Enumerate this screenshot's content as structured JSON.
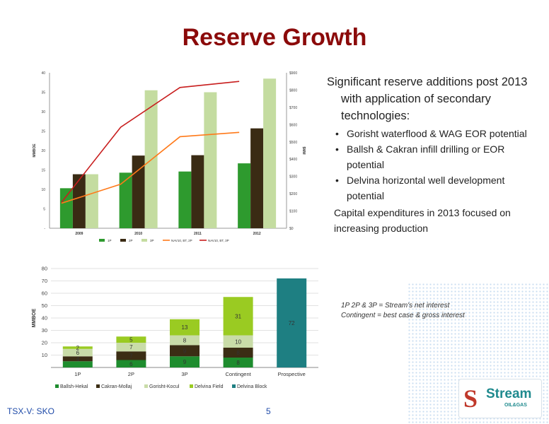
{
  "slide": {
    "title": "Reserve Growth",
    "footer_ticker": "TSX-V:  SKO",
    "page_number": "5",
    "note_line1": "1P 2P & 3P = Stream's net interest",
    "note_line2": "Contingent = best case & gross interest",
    "logo_name": "Stream",
    "logo_sub": "OIL&GAS"
  },
  "bullets": {
    "lead": "Significant reserve additions post 2013 with application of secondary technologies:",
    "items": [
      "Gorisht waterflood & WAG EOR potential",
      "Ballsh & Cakran infill drilling or EOR potential",
      "Delvina horizontal well development potential"
    ],
    "tail": "Capital expenditures in 2013 focused on increasing production"
  },
  "chart_data": [
    {
      "type": "bar",
      "categories": [
        "2009",
        "2010",
        "2011",
        "2012"
      ],
      "series": [
        {
          "name": "1P",
          "values": [
            10.3,
            14.3,
            14.6,
            16.7
          ],
          "color": "#2e9a2e"
        },
        {
          "name": "2P",
          "values": [
            13.9,
            18.7,
            18.8,
            25.7
          ],
          "color": "#3a2b14"
        },
        {
          "name": "3P",
          "values": [
            13.9,
            35.5,
            35.0,
            38.5
          ],
          "color": "#c4dca0"
        }
      ],
      "line_series": [
        {
          "name": "NAV10, BT, 2P",
          "values": [
            145,
            255,
            530,
            555
          ],
          "color": "#ff7a1a"
        },
        {
          "name": "NAV10, BT, 3P",
          "values": [
            150,
            585,
            815,
            850
          ],
          "color": "#c81e1e"
        }
      ],
      "ylabel": "MMBOE",
      "y2label": "$MM",
      "ylim": [
        0,
        40
      ],
      "y2lim": [
        0,
        900
      ],
      "yticks": [
        "-",
        "5",
        "10",
        "15",
        "20",
        "25",
        "30",
        "35",
        "40"
      ],
      "y2ticks": [
        "$0",
        "$100",
        "$200",
        "$300",
        "$400",
        "$500",
        "$600",
        "$700",
        "$800",
        "$900"
      ],
      "legend_position": "bottom",
      "grid": false
    },
    {
      "type": "bar",
      "stacked": true,
      "categories": [
        "1P",
        "2P",
        "3P",
        "Contingent",
        "Prospective"
      ],
      "series": [
        {
          "name": "Ballsh-Hekal",
          "values": [
            5,
            6,
            9,
            8,
            0
          ],
          "labels": [
            "",
            "6",
            "9",
            "8",
            ""
          ],
          "color": "#1e8c2e"
        },
        {
          "name": "Cakran-Mollaj",
          "values": [
            4,
            7,
            9,
            8,
            0
          ],
          "labels": [
            "4",
            "7",
            "9",
            "8",
            ""
          ],
          "color": "#3b2d14"
        },
        {
          "name": "Gorisht-Kocul",
          "values": [
            6,
            7,
            8,
            10,
            0
          ],
          "labels": [
            "6",
            "7",
            "8",
            "10",
            ""
          ],
          "color": "#c9dca8"
        },
        {
          "name": "Delvina Field",
          "values": [
            2,
            5,
            13,
            31,
            0
          ],
          "labels": [
            "2",
            "5",
            "13",
            "31",
            ""
          ],
          "color": "#9acb22"
        },
        {
          "name": "Delvina Block",
          "values": [
            0,
            0,
            0,
            0,
            72
          ],
          "labels": [
            "",
            "",
            "",
            "",
            "72"
          ],
          "color": "#1e7f82"
        }
      ],
      "ylabel": "MMBOE",
      "ylim": [
        0,
        80
      ],
      "yticks": [
        "10",
        "20",
        "30",
        "40",
        "50",
        "60",
        "70",
        "80"
      ],
      "legend_position": "bottom",
      "grid": true
    }
  ]
}
